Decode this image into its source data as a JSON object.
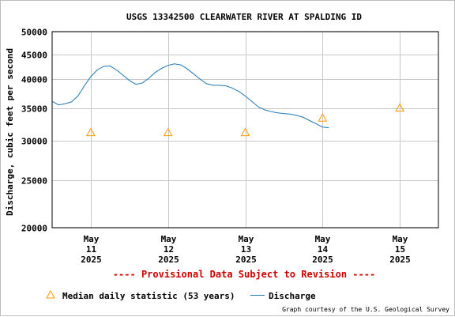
{
  "chart_data": {
    "type": "line",
    "title": "USGS 13342500 CLEARWATER RIVER AT SPALDING ID",
    "ylabel": "Discharge, cubic feet per second",
    "yscale": "log",
    "ylim": [
      20000,
      50000
    ],
    "y_ticks": [
      20000,
      25000,
      30000,
      35000,
      40000,
      45000,
      50000
    ],
    "y_tick_labels": [
      "20000",
      "25000",
      "30000",
      "35000",
      "40000",
      "45000",
      "50000"
    ],
    "xlim": [
      "2025-05-10T12:00",
      "2025-05-15T12:00"
    ],
    "x_ticks": [
      {
        "x": "2025-05-11",
        "lines": [
          "May",
          "11",
          "2025"
        ]
      },
      {
        "x": "2025-05-12",
        "lines": [
          "May",
          "12",
          "2025"
        ]
      },
      {
        "x": "2025-05-13",
        "lines": [
          "May",
          "13",
          "2025"
        ]
      },
      {
        "x": "2025-05-14",
        "lines": [
          "May",
          "14",
          "2025"
        ]
      },
      {
        "x": "2025-05-15",
        "lines": [
          "May",
          "15",
          "2025"
        ]
      }
    ],
    "grid": true,
    "legend_position": "bottom",
    "series": [
      {
        "name": "Discharge",
        "kind": "line",
        "color": "#1f77b4",
        "x": [
          "2025-05-10T12:00",
          "2025-05-10T14:00",
          "2025-05-10T16:00",
          "2025-05-10T18:00",
          "2025-05-10T20:00",
          "2025-05-10T22:00",
          "2025-05-11T00:00",
          "2025-05-11T02:00",
          "2025-05-11T04:00",
          "2025-05-11T06:00",
          "2025-05-11T08:00",
          "2025-05-11T10:00",
          "2025-05-11T12:00",
          "2025-05-11T14:00",
          "2025-05-11T16:00",
          "2025-05-11T18:00",
          "2025-05-11T20:00",
          "2025-05-11T22:00",
          "2025-05-12T00:00",
          "2025-05-12T02:00",
          "2025-05-12T04:00",
          "2025-05-12T06:00",
          "2025-05-12T08:00",
          "2025-05-12T10:00",
          "2025-05-12T12:00",
          "2025-05-12T14:00",
          "2025-05-12T16:00",
          "2025-05-12T18:00",
          "2025-05-12T20:00",
          "2025-05-12T22:00",
          "2025-05-13T00:00",
          "2025-05-13T02:00",
          "2025-05-13T04:00",
          "2025-05-13T06:00",
          "2025-05-13T08:00",
          "2025-05-13T10:00",
          "2025-05-13T12:00",
          "2025-05-13T14:00",
          "2025-05-13T16:00",
          "2025-05-13T18:00",
          "2025-05-13T20:00",
          "2025-05-13T22:00",
          "2025-05-14T00:00",
          "2025-05-14T02:00",
          "2025-05-14T04:00",
          "2025-05-14T06:00",
          "2025-05-14T08:00",
          "2025-05-14T10:00",
          "2025-05-14T12:00",
          "2025-05-14T14:00",
          "2025-05-14T16:00",
          "2025-05-14T18:00",
          "2025-05-14T20:00",
          "2025-05-14T22:00",
          "2025-05-15T00:00",
          "2025-05-15T02:00"
        ],
        "y": [
          36100,
          35500,
          35700,
          36000,
          37000,
          38800,
          40500,
          41800,
          42500,
          42600,
          41800,
          40800,
          39800,
          39100,
          39300,
          40200,
          41300,
          42100,
          42700,
          43000,
          42800,
          42000,
          41000,
          40000,
          39200,
          38900,
          38900,
          38800,
          38400,
          37800,
          37000,
          36100,
          35200,
          34700,
          34400,
          34200,
          34100,
          34000,
          33800,
          33500,
          33000,
          32500,
          32000,
          31900,
          null,
          null,
          null,
          null,
          null,
          null,
          null,
          null,
          null,
          null,
          null,
          null
        ]
      },
      {
        "name": "Median daily statistic (53 years)",
        "kind": "marker",
        "marker": "triangle",
        "color": "#ff9900",
        "x": [
          "2025-05-11",
          "2025-05-12",
          "2025-05-13",
          "2025-05-14",
          "2025-05-15"
        ],
        "y": [
          31200,
          31200,
          31200,
          33400,
          35000
        ]
      }
    ],
    "annotation": "---- Provisional Data Subject to Revision ----",
    "annotation_color": "#cc0000",
    "credit": "Graph courtesy of the U.S. Geological Survey"
  }
}
